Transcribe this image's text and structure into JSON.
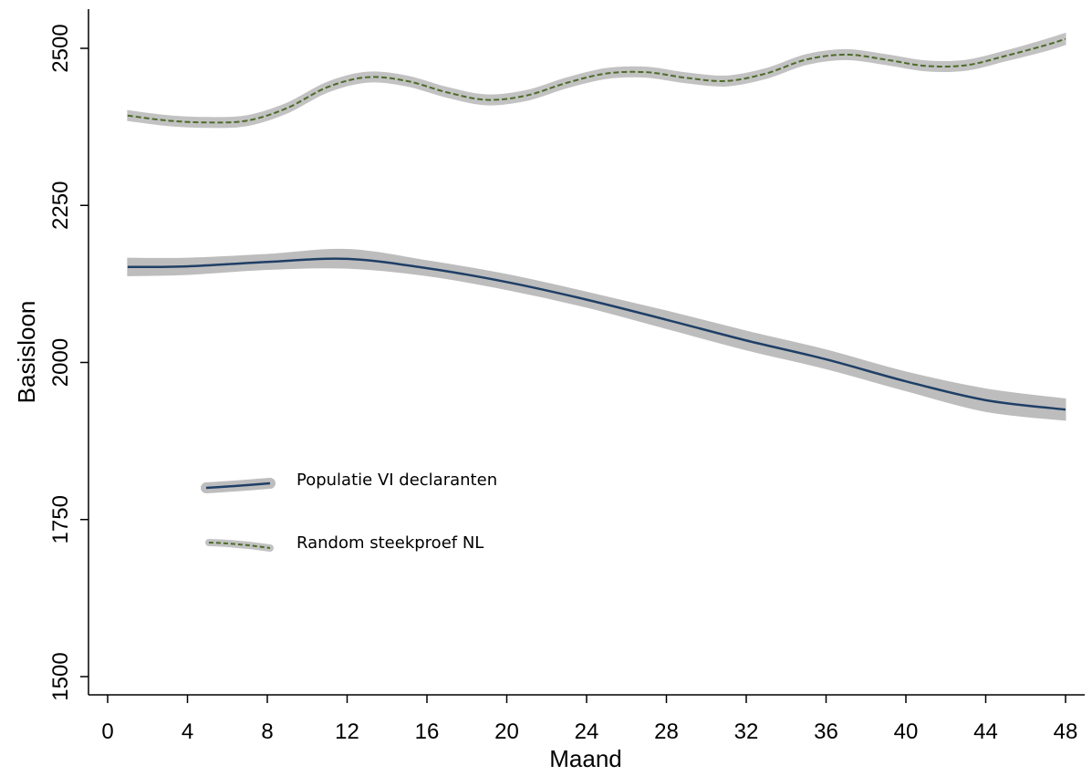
{
  "chart_data": {
    "type": "line",
    "xlabel": "Maand",
    "ylabel": "Basisloon",
    "xlim": [
      -1,
      49
    ],
    "ylim": [
      1470,
      2560
    ],
    "x_ticks": [
      0,
      4,
      8,
      12,
      16,
      20,
      24,
      28,
      32,
      36,
      40,
      44,
      48
    ],
    "y_ticks": [
      1500,
      1750,
      2000,
      2250,
      2500
    ],
    "x_tick_labels": [
      "0",
      "4",
      "8",
      "12",
      "16",
      "20",
      "24",
      "28",
      "32",
      "36",
      "40",
      "44",
      "48"
    ],
    "y_tick_labels": [
      "1500",
      "1750",
      "2000",
      "2250",
      "2500"
    ],
    "grid": false,
    "legend_position": "inside-left",
    "series": [
      {
        "name": "Populatie VI declaranten",
        "style": "solid",
        "color": "#1f3f66",
        "band_color": "#bdbdbd",
        "x": [
          1,
          4,
          8,
          12,
          16,
          20,
          24,
          28,
          32,
          36,
          40,
          44,
          48
        ],
        "y": [
          2152,
          2153,
          2160,
          2165,
          2150,
          2128,
          2100,
          2068,
          2035,
          2005,
          1970,
          1940,
          1925
        ],
        "lower": [
          2138,
          2140,
          2148,
          2150,
          2138,
          2116,
          2088,
          2054,
          2020,
          1990,
          1955,
          1922,
          1908
        ],
        "upper": [
          2166,
          2166,
          2172,
          2180,
          2162,
          2140,
          2112,
          2082,
          2050,
          2020,
          1985,
          1958,
          1942
        ]
      },
      {
        "name": "Random steekproef NL",
        "style": "dashed",
        "color": "#4f6b2a",
        "band_color": "#c2c2c2",
        "x": [
          1,
          3,
          5,
          7,
          9,
          11,
          13,
          15,
          17,
          19,
          21,
          23,
          25,
          27,
          29,
          31,
          33,
          35,
          37,
          39,
          41,
          43,
          45,
          47,
          48
        ],
        "y": [
          2393,
          2385,
          2382,
          2385,
          2405,
          2438,
          2454,
          2448,
          2430,
          2418,
          2425,
          2445,
          2460,
          2462,
          2453,
          2448,
          2460,
          2482,
          2490,
          2482,
          2472,
          2473,
          2488,
          2505,
          2515
        ],
        "lower": [
          2385,
          2377,
          2374,
          2377,
          2397,
          2430,
          2446,
          2440,
          2422,
          2410,
          2417,
          2437,
          2452,
          2454,
          2445,
          2440,
          2452,
          2474,
          2482,
          2474,
          2464,
          2465,
          2480,
          2496,
          2506
        ],
        "upper": [
          2401,
          2393,
          2390,
          2393,
          2413,
          2446,
          2462,
          2456,
          2438,
          2426,
          2433,
          2453,
          2468,
          2470,
          2461,
          2456,
          2468,
          2490,
          2498,
          2490,
          2480,
          2481,
          2496,
          2514,
          2524
        ]
      }
    ]
  }
}
